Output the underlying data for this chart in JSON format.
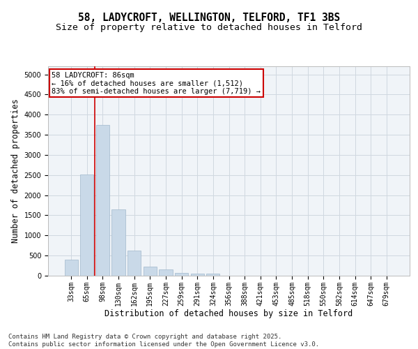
{
  "title_line1": "58, LADYCROFT, WELLINGTON, TELFORD, TF1 3BS",
  "title_line2": "Size of property relative to detached houses in Telford",
  "xlabel": "Distribution of detached houses by size in Telford",
  "ylabel": "Number of detached properties",
  "categories": [
    "33sqm",
    "65sqm",
    "98sqm",
    "130sqm",
    "162sqm",
    "195sqm",
    "227sqm",
    "259sqm",
    "291sqm",
    "324sqm",
    "356sqm",
    "388sqm",
    "421sqm",
    "453sqm",
    "485sqm",
    "518sqm",
    "550sqm",
    "582sqm",
    "614sqm",
    "647sqm",
    "679sqm"
  ],
  "values": [
    400,
    2510,
    3750,
    1650,
    630,
    220,
    150,
    70,
    50,
    50,
    5,
    0,
    0,
    0,
    0,
    0,
    0,
    0,
    0,
    0,
    0
  ],
  "bar_color": "#c9d9e8",
  "bar_edgecolor": "#a0b8cc",
  "vline_x_index": 1.5,
  "vline_color": "#cc0000",
  "annotation_text": "58 LADYCROFT: 86sqm\n← 16% of detached houses are smaller (1,512)\n83% of semi-detached houses are larger (7,719) →",
  "annotation_box_edgecolor": "#cc0000",
  "annotation_box_facecolor": "#ffffff",
  "ylim": [
    0,
    5200
  ],
  "yticks": [
    0,
    500,
    1000,
    1500,
    2000,
    2500,
    3000,
    3500,
    4000,
    4500,
    5000
  ],
  "grid_color": "#d0d8e0",
  "background_color": "#f0f4f8",
  "footer_text": "Contains HM Land Registry data © Crown copyright and database right 2025.\nContains public sector information licensed under the Open Government Licence v3.0.",
  "title_fontsize": 10.5,
  "subtitle_fontsize": 9.5,
  "axis_label_fontsize": 8.5,
  "tick_fontsize": 7,
  "annotation_fontsize": 7.5,
  "footer_fontsize": 6.5
}
